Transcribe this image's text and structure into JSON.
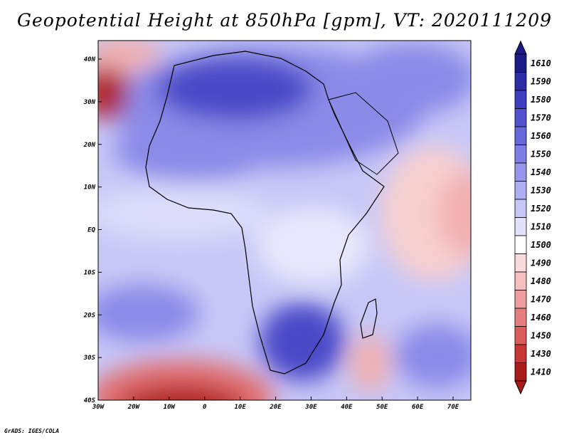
{
  "title": "Geopotential Height at 850hPa [gpm], VT: 2020111209",
  "credit": "GrADS: IGES/COLA",
  "map": {
    "region": "Africa",
    "lon_range": [
      -30,
      75
    ],
    "lat_range": [
      -40,
      45
    ],
    "x_ticks": [
      "30W",
      "20W",
      "10W",
      "0",
      "10E",
      "20E",
      "30E",
      "40E",
      "50E",
      "60E",
      "70E"
    ],
    "y_ticks": [
      "40N",
      "30N",
      "20N",
      "10N",
      "EQ",
      "10S",
      "20S",
      "30S",
      "40S"
    ]
  },
  "colorbar": {
    "labels": [
      "1610",
      "1590",
      "1580",
      "1570",
      "1560",
      "1550",
      "1540",
      "1530",
      "1520",
      "1510",
      "1500",
      "1490",
      "1480",
      "1470",
      "1460",
      "1450",
      "1430",
      "1410"
    ],
    "colors": [
      "#1c1c86",
      "#2d2da6",
      "#3e3ec0",
      "#5252cf",
      "#6767dc",
      "#7e7ee4",
      "#9696ec",
      "#aeaef2",
      "#c7c7f7",
      "#e2e2fb",
      "#ffffff",
      "#fbdcdc",
      "#f6c0c0",
      "#ef9f9f",
      "#e67e7e",
      "#dc5c5c",
      "#c93636",
      "#a81c1c"
    ]
  },
  "field_colors": {
    "light_blue": "#c7c7f7",
    "mid_blue": "#8a8ae8",
    "dark_blue": "#4a4ac8",
    "pale_red": "#f8d0d0",
    "red": "#e27070",
    "dark_red": "#b02020"
  }
}
